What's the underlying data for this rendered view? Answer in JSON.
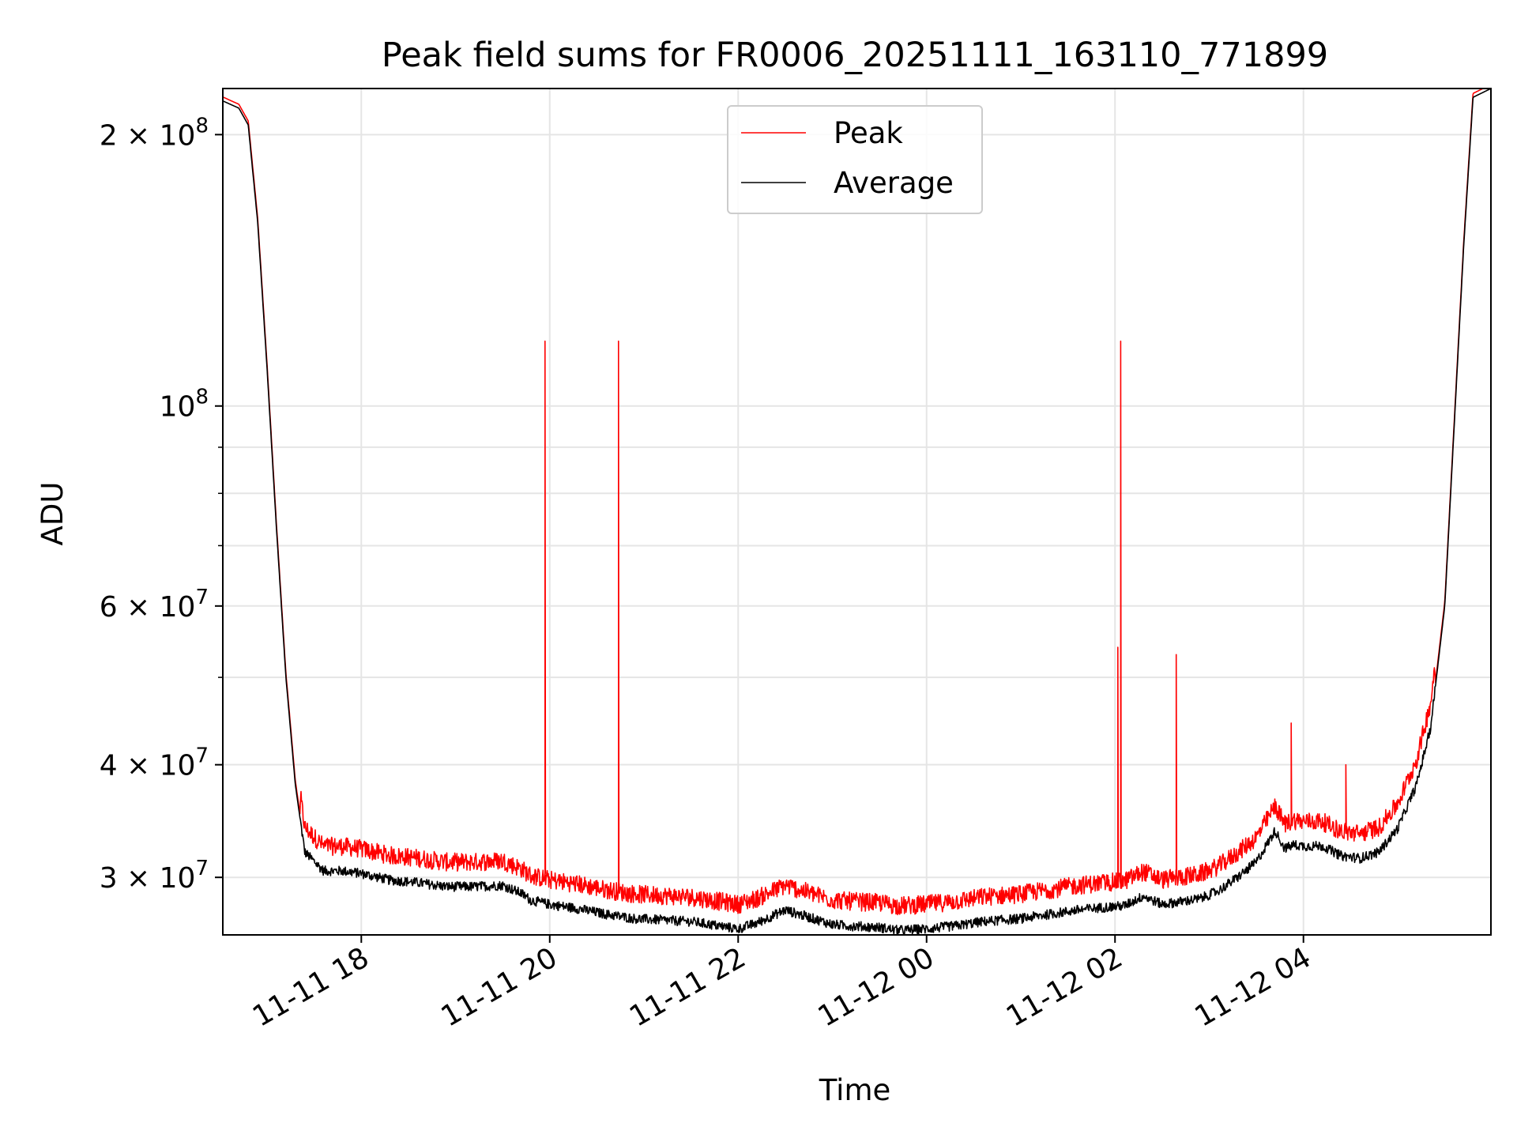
{
  "chart_data": {
    "type": "line",
    "title": "Peak field sums for FR0006_20251111_163110_771899",
    "xlabel": "Time",
    "ylabel": "ADU",
    "yscale": "log",
    "xlim_hours": [
      16.53,
      29.99
    ],
    "ylim": [
      25900000,
      225000000
    ],
    "grid": true,
    "legend_position": "top-center",
    "colors": {
      "Peak": "#ff0000",
      "Average": "#000000"
    },
    "x_ticks": [
      {
        "h": 18,
        "label": "11-11 18"
      },
      {
        "h": 20,
        "label": "11-11 20"
      },
      {
        "h": 22,
        "label": "11-11 22"
      },
      {
        "h": 24,
        "label": "11-12 00"
      },
      {
        "h": 26,
        "label": "11-12 02"
      },
      {
        "h": 28,
        "label": "11-12 04"
      }
    ],
    "y_ticks": [
      {
        "value": 200000000,
        "base": "2 × 10",
        "exp": "8"
      },
      {
        "value": 100000000,
        "base": "10",
        "exp": "8"
      },
      {
        "value": 60000000,
        "base": "6 × 10",
        "exp": "7"
      },
      {
        "value": 40000000,
        "base": "4 × 10",
        "exp": "7"
      },
      {
        "value": 30000000,
        "base": "3 × 10",
        "exp": "7"
      }
    ],
    "y_minor_ticks": [
      90000000,
      80000000,
      70000000,
      50000000
    ],
    "series": [
      {
        "name": "Average",
        "x": [
          16.53,
          16.7,
          16.8,
          16.9,
          17.0,
          17.1,
          17.2,
          17.3,
          17.4,
          17.6,
          17.8,
          18.0,
          18.3,
          18.6,
          18.9,
          19.2,
          19.5,
          19.7,
          19.8,
          20.0,
          20.3,
          20.6,
          20.9,
          21.2,
          21.5,
          21.7,
          22.0,
          22.2,
          22.5,
          22.8,
          23.0,
          23.2,
          23.5,
          23.7,
          24.0,
          24.3,
          24.6,
          25.0,
          25.3,
          25.6,
          25.9,
          26.1,
          26.3,
          26.5,
          26.7,
          26.9,
          27.1,
          27.3,
          27.5,
          27.7,
          27.8,
          27.9,
          28.0,
          28.2,
          28.4,
          28.6,
          28.8,
          29.0,
          29.2,
          29.35,
          29.5,
          29.6,
          29.7,
          29.8,
          29.99
        ],
        "y": [
          218000000,
          214000000,
          205000000,
          160000000,
          110000000,
          73000000,
          50000000,
          38000000,
          32000000,
          30500000,
          30500000,
          30300000,
          29800000,
          29600000,
          29300000,
          29300000,
          29400000,
          28800000,
          28300000,
          28000000,
          27700000,
          27300000,
          27000000,
          26900000,
          26800000,
          26600000,
          26300000,
          26700000,
          27600000,
          27000000,
          26600000,
          26500000,
          26400000,
          26200000,
          26300000,
          26500000,
          26800000,
          27000000,
          27300000,
          27600000,
          27800000,
          27900000,
          28600000,
          28000000,
          28200000,
          28400000,
          29000000,
          30000000,
          31200000,
          33800000,
          32300000,
          32600000,
          32500000,
          32500000,
          31700000,
          31500000,
          32000000,
          34000000,
          38000000,
          44000000,
          60000000,
          95000000,
          150000000,
          220000000,
          225000000
        ]
      },
      {
        "name": "Peak",
        "offset_factor": 1.04,
        "spikes": [
          {
            "x": 19.95,
            "y": 118000000
          },
          {
            "x": 20.73,
            "y": 118000000
          },
          {
            "x": 26.06,
            "y": 118000000
          },
          {
            "x": 26.03,
            "y": 54000000
          },
          {
            "x": 26.65,
            "y": 53000000
          },
          {
            "x": 27.87,
            "y": 44500000
          },
          {
            "x": 28.45,
            "y": 40000000
          }
        ]
      }
    ]
  }
}
